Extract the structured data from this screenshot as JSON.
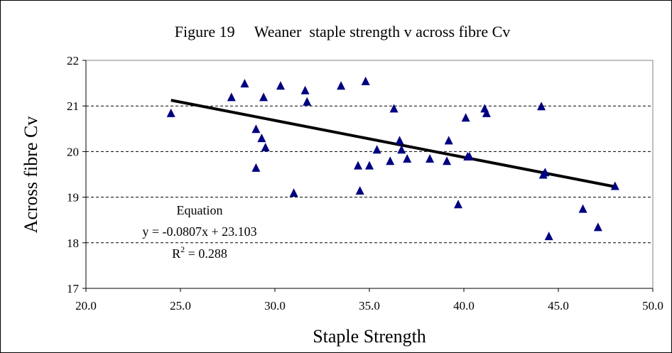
{
  "chart_data": {
    "type": "scatter",
    "title": "Figure 19     Weaner  staple strength v across fibre Cv",
    "xlabel": "Staple Strength",
    "ylabel": "Across fibre Cv",
    "xlim": [
      20.0,
      50.0
    ],
    "ylim": [
      17,
      22
    ],
    "x_ticks": [
      "20.0",
      "25.0",
      "30.0",
      "35.0",
      "40.0",
      "45.0",
      "50.0"
    ],
    "y_ticks": [
      "17",
      "18",
      "19",
      "20",
      "21",
      "22"
    ],
    "grid": "horizontal dashed",
    "marker_color": "#000080",
    "line_color": "#000000",
    "points": [
      {
        "x": 24.5,
        "y": 20.85
      },
      {
        "x": 27.7,
        "y": 21.2
      },
      {
        "x": 28.4,
        "y": 21.5
      },
      {
        "x": 29.0,
        "y": 20.5
      },
      {
        "x": 29.0,
        "y": 19.65
      },
      {
        "x": 29.3,
        "y": 20.3
      },
      {
        "x": 29.4,
        "y": 21.2
      },
      {
        "x": 29.5,
        "y": 20.1
      },
      {
        "x": 30.3,
        "y": 21.45
      },
      {
        "x": 31.0,
        "y": 19.1
      },
      {
        "x": 31.6,
        "y": 21.35
      },
      {
        "x": 31.7,
        "y": 21.1
      },
      {
        "x": 33.5,
        "y": 21.45
      },
      {
        "x": 34.4,
        "y": 19.7
      },
      {
        "x": 34.5,
        "y": 19.15
      },
      {
        "x": 34.8,
        "y": 21.55
      },
      {
        "x": 35.0,
        "y": 19.7
      },
      {
        "x": 35.4,
        "y": 20.05
      },
      {
        "x": 36.1,
        "y": 19.8
      },
      {
        "x": 36.3,
        "y": 20.95
      },
      {
        "x": 36.6,
        "y": 20.25
      },
      {
        "x": 36.7,
        "y": 20.05
      },
      {
        "x": 37.0,
        "y": 19.85
      },
      {
        "x": 38.2,
        "y": 19.85
      },
      {
        "x": 39.1,
        "y": 19.8
      },
      {
        "x": 39.2,
        "y": 20.25
      },
      {
        "x": 39.7,
        "y": 18.85
      },
      {
        "x": 40.1,
        "y": 20.75
      },
      {
        "x": 40.2,
        "y": 19.9
      },
      {
        "x": 40.3,
        "y": 19.9
      },
      {
        "x": 41.1,
        "y": 20.95
      },
      {
        "x": 41.2,
        "y": 20.85
      },
      {
        "x": 44.1,
        "y": 21.0
      },
      {
        "x": 44.2,
        "y": 19.5
      },
      {
        "x": 44.3,
        "y": 19.55
      },
      {
        "x": 44.5,
        "y": 18.15
      },
      {
        "x": 46.3,
        "y": 18.75
      },
      {
        "x": 47.1,
        "y": 18.35
      },
      {
        "x": 48.0,
        "y": 19.25
      }
    ],
    "trendline": {
      "slope": -0.0807,
      "intercept": 23.103,
      "x_range": [
        24.5,
        48.0
      ]
    },
    "annotation": {
      "heading": "Equation",
      "equation": "y = -0.0807x + 23.103",
      "r2_prefix": "R",
      "r2_superscript": "2",
      "r2_suffix": " = 0.288"
    }
  }
}
